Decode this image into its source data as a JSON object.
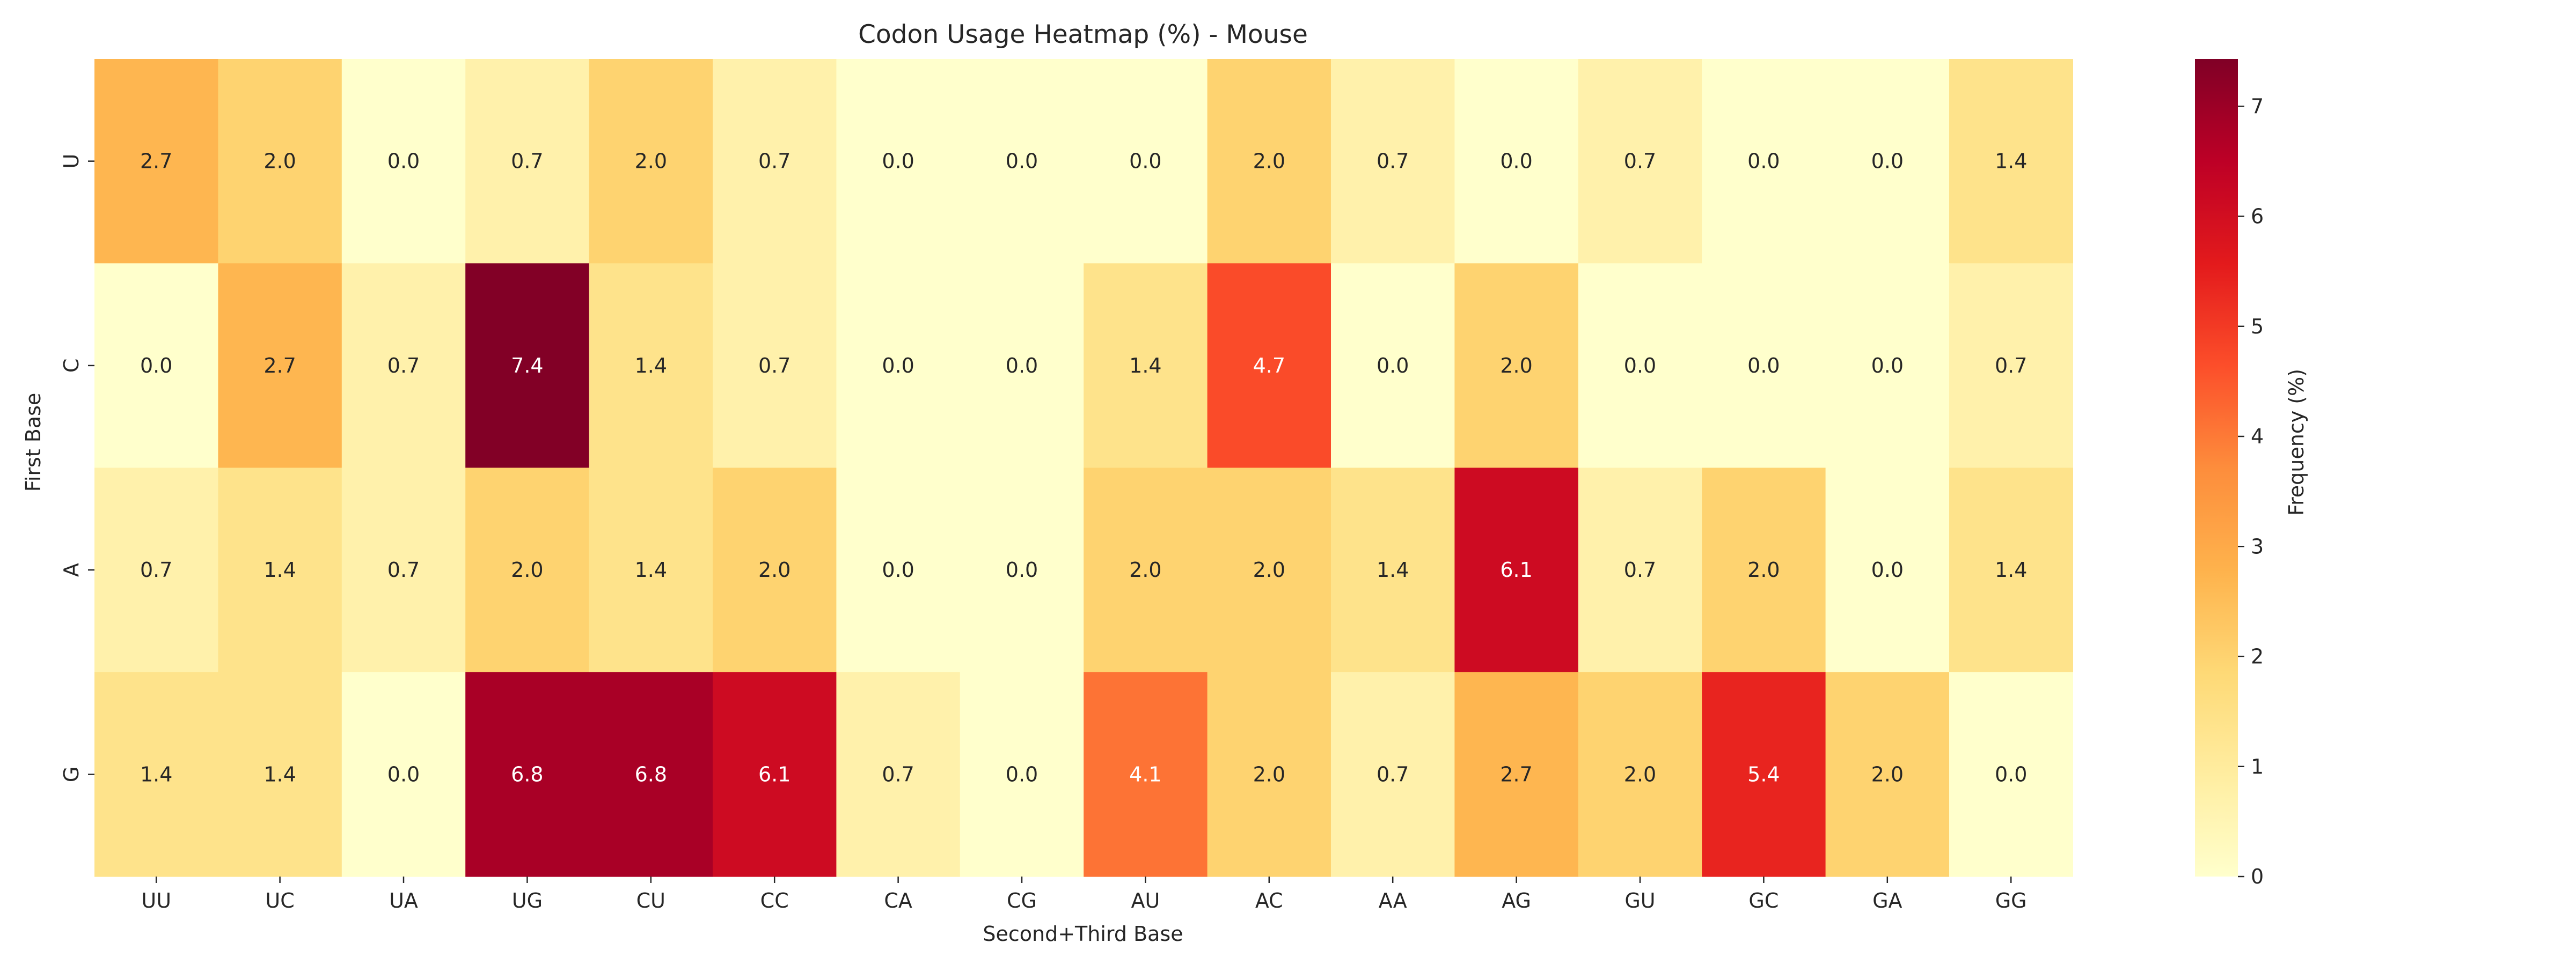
{
  "chart_data": {
    "type": "heatmap",
    "title": "Codon Usage Heatmap (%) - Mouse",
    "xlabel": "Second+Third Base",
    "ylabel": "First Base",
    "x_categories": [
      "UU",
      "UC",
      "UA",
      "UG",
      "CU",
      "CC",
      "CA",
      "CG",
      "AU",
      "AC",
      "AA",
      "AG",
      "GU",
      "GC",
      "GA",
      "GG"
    ],
    "y_categories": [
      "U",
      "C",
      "A",
      "G"
    ],
    "values": [
      [
        2.7,
        2.0,
        0.0,
        0.7,
        2.0,
        0.7,
        0.0,
        0.0,
        0.0,
        2.0,
        0.7,
        0.0,
        0.7,
        0.0,
        0.0,
        1.4
      ],
      [
        0.0,
        2.7,
        0.7,
        7.4,
        1.4,
        0.7,
        0.0,
        0.0,
        1.4,
        4.7,
        0.0,
        2.0,
        0.0,
        0.0,
        0.0,
        0.7
      ],
      [
        0.7,
        1.4,
        0.7,
        2.0,
        1.4,
        2.0,
        0.0,
        0.0,
        2.0,
        2.0,
        1.4,
        6.1,
        0.7,
        2.0,
        0.0,
        1.4
      ],
      [
        1.4,
        1.4,
        0.0,
        6.8,
        6.8,
        6.1,
        0.7,
        0.0,
        4.1,
        2.0,
        0.7,
        2.7,
        2.0,
        5.4,
        2.0,
        0.0
      ]
    ],
    "colorbar": {
      "label": "Frequency (%)",
      "range": [
        0,
        7.43
      ],
      "ticks": [
        "0",
        "1",
        "2",
        "3",
        "4",
        "5",
        "6",
        "7"
      ],
      "colormap": "YlOrRd"
    },
    "annotations": true,
    "grid": false
  }
}
